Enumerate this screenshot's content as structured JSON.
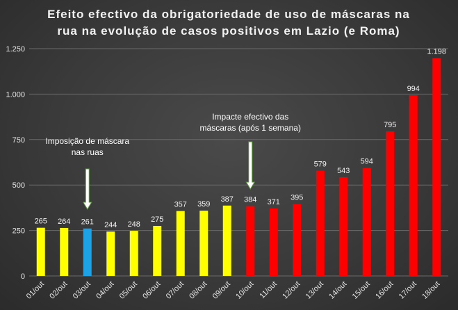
{
  "chart_data": {
    "type": "bar",
    "title_lines": [
      "Efeito efectivo da obrigatoriedade de uso de máscaras na",
      "rua na evolução de casos positivos em Lazio (e Roma)"
    ],
    "xlabel": "",
    "ylabel": "",
    "ylim": [
      0,
      1250
    ],
    "yticks": [
      0,
      250,
      500,
      750,
      1000,
      1250
    ],
    "ytick_labels": [
      "0",
      "250",
      "500",
      "750",
      "1.000",
      "1.250"
    ],
    "grid": true,
    "categories": [
      "01/out",
      "02/out",
      "03/out",
      "04/out",
      "05/out",
      "06/out",
      "07/out",
      "08/out",
      "09/out",
      "10/out",
      "11/out",
      "12/out",
      "13/out",
      "14/out",
      "15/out",
      "16/out",
      "17/out",
      "18/out"
    ],
    "values": [
      265,
      264,
      261,
      244,
      248,
      275,
      357,
      359,
      387,
      384,
      371,
      395,
      579,
      543,
      594,
      795,
      994,
      1198
    ],
    "value_labels": [
      "265",
      "264",
      "261",
      "244",
      "248",
      "275",
      "357",
      "359",
      "387",
      "384",
      "371",
      "395",
      "579",
      "543",
      "594",
      "795",
      "994",
      "1.198"
    ],
    "bar_colors": [
      "#ffff00",
      "#ffff00",
      "#1ea2e6",
      "#ffff00",
      "#ffff00",
      "#ffff00",
      "#ffff00",
      "#ffff00",
      "#ffff00",
      "#ff0000",
      "#ff0000",
      "#ff0000",
      "#ff0000",
      "#ff0000",
      "#ff0000",
      "#ff0000",
      "#ff0000",
      "#ff0000"
    ],
    "annotations": [
      {
        "lines": [
          "Imposição de máscara",
          "nas ruas"
        ],
        "category": "03/out"
      },
      {
        "lines": [
          "Impacte efectivo das",
          "máscaras (após 1 semana)"
        ],
        "category": "10/out"
      }
    ],
    "colors": {
      "grid": "#6a6a6a",
      "arrow_fill": "#ffffff",
      "arrow_stroke": "#5a9a3a"
    }
  }
}
